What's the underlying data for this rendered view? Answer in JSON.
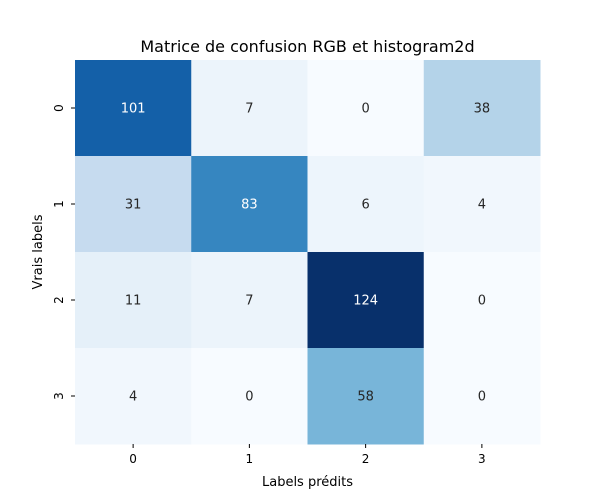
{
  "chart_data": {
    "type": "heatmap",
    "title": "Matrice de confusion RGB et histogram2d",
    "xlabel": "Labels prédits",
    "ylabel": "Vrais labels",
    "x_categories": [
      "0",
      "1",
      "2",
      "3"
    ],
    "y_categories": [
      "0",
      "1",
      "2",
      "3"
    ],
    "values": [
      [
        101,
        7,
        0,
        38
      ],
      [
        31,
        83,
        6,
        4
      ],
      [
        11,
        7,
        124,
        0
      ],
      [
        4,
        0,
        58,
        0
      ]
    ],
    "colormap": "Blues",
    "vmin": 0,
    "vmax": 124,
    "annotate": true,
    "colorbar": false
  }
}
